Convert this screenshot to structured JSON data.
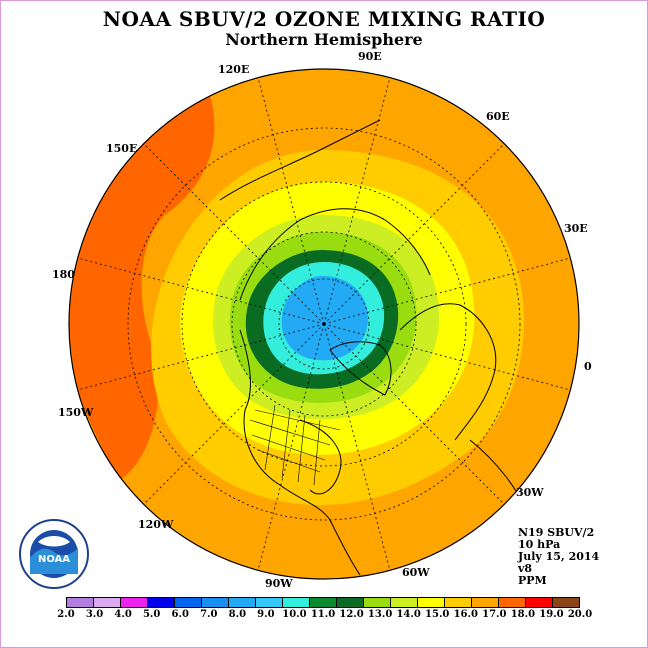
{
  "title": "NOAA SBUV/2 OZONE MIXING RATIO",
  "subtitle": "Northern Hemisphere",
  "longitude_labels": [
    "90E",
    "60E",
    "30E",
    "0",
    "30W",
    "60W",
    "90W",
    "120W",
    "150W",
    "180",
    "150E",
    "120E"
  ],
  "info": {
    "instrument": "N19 SBUV/2",
    "level": "10 hPa",
    "date": "July 15, 2014",
    "version": "v8",
    "units": "PPM"
  },
  "logo_text": "NOAA",
  "colorbar": {
    "ticks": [
      "2.0",
      "3.0",
      "4.0",
      "5.0",
      "6.0",
      "7.0",
      "8.0",
      "9.0",
      "10.0",
      "11.0",
      "12.0",
      "13.0",
      "14.0",
      "15.0",
      "16.0",
      "17.0",
      "18.0",
      "19.0",
      "20.0"
    ],
    "colors": [
      "#b37ee0",
      "#d9aaf0",
      "#ee22ee",
      "#0000ee",
      "#0066ee",
      "#1a8ff0",
      "#22aaf5",
      "#33c8f5",
      "#33eedd",
      "#0b8a2e",
      "#0a6b22",
      "#99dd11",
      "#ccee22",
      "#ffff00",
      "#ffcc00",
      "#ffa500",
      "#ff6600",
      "#ff0000",
      "#8b4513"
    ]
  },
  "map": {
    "projection": "north polar stereographic",
    "background_color": "#ffa500",
    "contour_fields": [
      {
        "color": "#ff6600",
        "level_ppm": 17.0
      },
      {
        "color": "#ffcc00",
        "level_ppm": 15.0
      },
      {
        "color": "#ffff00",
        "level_ppm": 14.0
      },
      {
        "color": "#ccee22",
        "level_ppm": 13.0
      },
      {
        "color": "#99dd11",
        "level_ppm": 12.0
      },
      {
        "color": "#0a6b22",
        "level_ppm": 11.0
      },
      {
        "color": "#33eedd",
        "level_ppm": 9.0
      },
      {
        "color": "#22aaf5",
        "level_ppm": 8.0
      }
    ]
  }
}
